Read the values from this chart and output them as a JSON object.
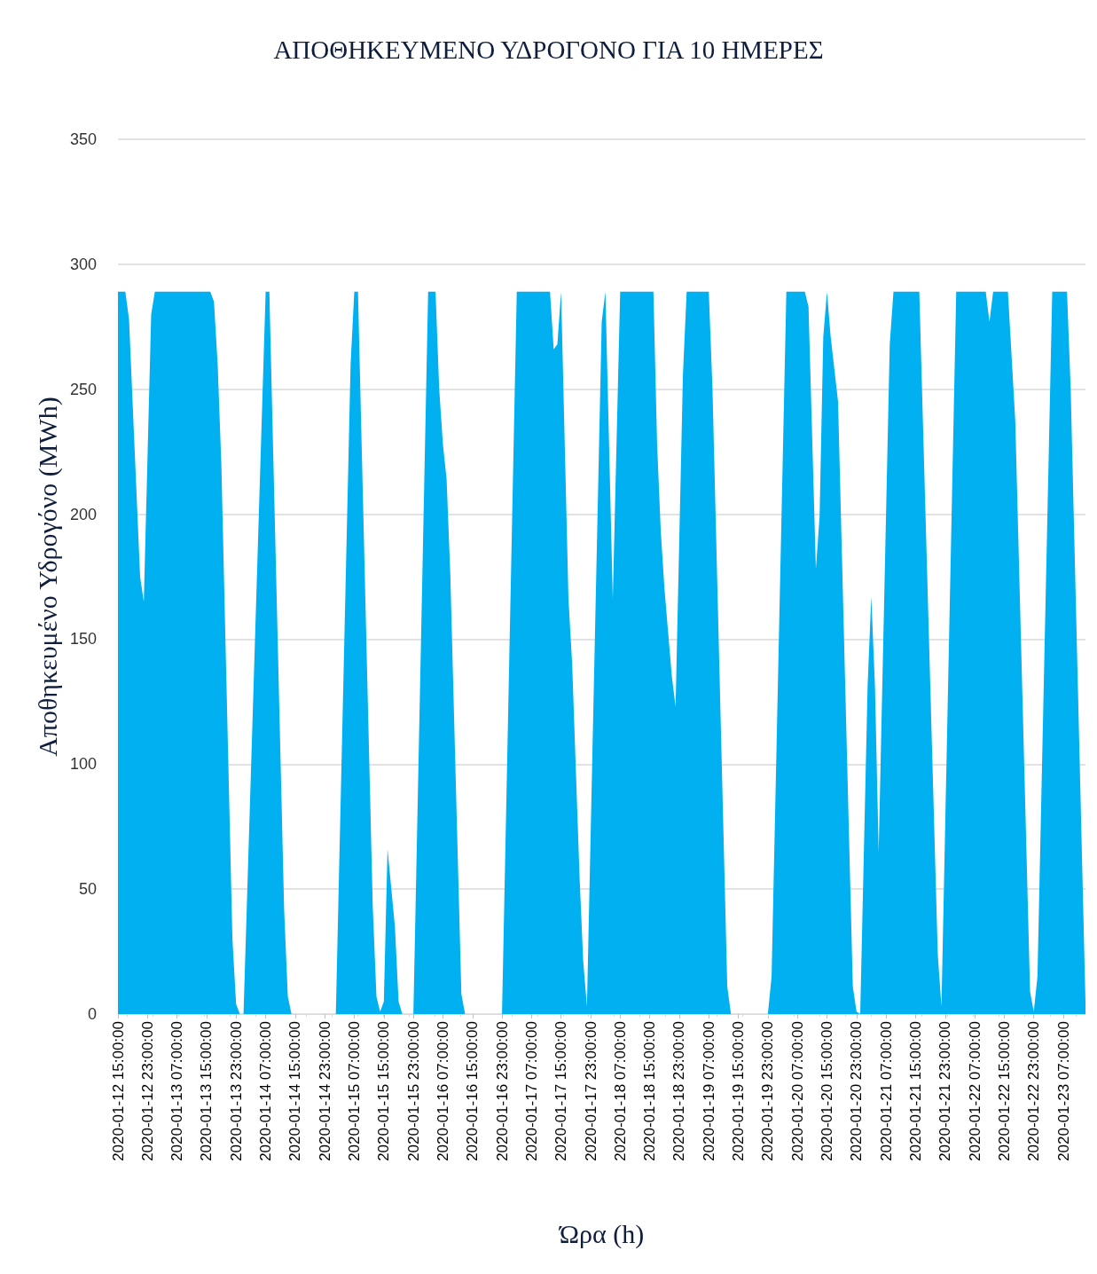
{
  "chart_data": {
    "type": "area",
    "title": "ΑΠΟΘΗΚΕΥΜΕΝΟ ΥΔΡΟΓΟΝΟ ΓΙΑ 10 ΗΜΕΡΕΣ",
    "xlabel": "Ώρα (h)",
    "ylabel": "Αποθηκευμένο Υδρογόνο (MWh)",
    "x": [
      "2020-01-12T15:00",
      "2020-01-12T17:00",
      "2020-01-12T18:00",
      "2020-01-12T21:00",
      "2020-01-12T22:00",
      "2020-01-13T00:00",
      "2020-01-13T01:00",
      "2020-01-13T16:00",
      "2020-01-13T17:00",
      "2020-01-13T18:00",
      "2020-01-13T19:00",
      "2020-01-13T22:00",
      "2020-01-13T23:00",
      "2020-01-14T00:00",
      "2020-01-14T01:00",
      "2020-01-14T07:00",
      "2020-01-14T08:00",
      "2020-01-14T12:00",
      "2020-01-14T13:00",
      "2020-01-14T14:00",
      "2020-01-15T02:00",
      "2020-01-15T06:00",
      "2020-01-15T07:00",
      "2020-01-15T08:00",
      "2020-01-15T12:00",
      "2020-01-15T13:00",
      "2020-01-15T14:00",
      "2020-01-15T15:00",
      "2020-01-15T16:00",
      "2020-01-15T18:00",
      "2020-01-15T19:00",
      "2020-01-15T20:00",
      "2020-01-15T23:00",
      "2020-01-16T03:00",
      "2020-01-16T05:00",
      "2020-01-16T06:00",
      "2020-01-16T07:00",
      "2020-01-16T08:00",
      "2020-01-16T09:00",
      "2020-01-16T12:00",
      "2020-01-16T13:00",
      "2020-01-16T23:00",
      "2020-01-17T03:00",
      "2020-01-17T12:00",
      "2020-01-17T13:00",
      "2020-01-17T14:00",
      "2020-01-17T15:00",
      "2020-01-17T17:00",
      "2020-01-17T18:00",
      "2020-01-17T20:00",
      "2020-01-17T21:00",
      "2020-01-17T22:00",
      "2020-01-18T02:00",
      "2020-01-18T03:00",
      "2020-01-18T05:00",
      "2020-01-18T07:00",
      "2020-01-18T16:00",
      "2020-01-18T17:00",
      "2020-01-18T18:00",
      "2020-01-18T19:00",
      "2020-01-18T21:00",
      "2020-01-18T22:00",
      "2020-01-19T00:00",
      "2020-01-19T01:00",
      "2020-01-19T07:00",
      "2020-01-19T08:00",
      "2020-01-19T12:00",
      "2020-01-19T13:00",
      "2020-01-19T23:00",
      "2020-01-20T00:00",
      "2020-01-20T04:00",
      "2020-01-20T09:00",
      "2020-01-20T10:00",
      "2020-01-20T12:00",
      "2020-01-20T13:00",
      "2020-01-20T14:00",
      "2020-01-20T15:00",
      "2020-01-20T16:00",
      "2020-01-20T18:00",
      "2020-01-20T22:00",
      "2020-01-20T23:00",
      "2020-01-21T00:00",
      "2020-01-21T02:00",
      "2020-01-21T03:00",
      "2020-01-21T04:00",
      "2020-01-21T05:00",
      "2020-01-21T08:00",
      "2020-01-21T09:00",
      "2020-01-21T16:00",
      "2020-01-21T21:00",
      "2020-01-21T22:00",
      "2020-01-22T02:00",
      "2020-01-22T10:00",
      "2020-01-22T11:00",
      "2020-01-22T12:00",
      "2020-01-22T16:00",
      "2020-01-22T18:00",
      "2020-01-22T22:00",
      "2020-01-22T23:00",
      "2020-01-23T00:00",
      "2020-01-23T04:00",
      "2020-01-23T08:00",
      "2020-01-23T09:00",
      "2020-01-23T13:00"
    ],
    "series": [
      {
        "color": "#00b0f0",
        "values": [
          289,
          289,
          278,
          175,
          165,
          280,
          289,
          289,
          285,
          260,
          220,
          30,
          4,
          0,
          0,
          289,
          289,
          42,
          7,
          0,
          0,
          260,
          289,
          289,
          43,
          7,
          1,
          5,
          66,
          35,
          5,
          0,
          0,
          289,
          289,
          250,
          228,
          214,
          176,
          8,
          0,
          0,
          289,
          289,
          266,
          268,
          289,
          166,
          140,
          55,
          21,
          3,
          277,
          289,
          166,
          289,
          289,
          228,
          193,
          170,
          135,
          123,
          256,
          289,
          289,
          250,
          11,
          0,
          0,
          15,
          289,
          289,
          283,
          178,
          199,
          271,
          289,
          271,
          245,
          11,
          1,
          0,
          131,
          167,
          131,
          65,
          268,
          289,
          289,
          24,
          3,
          289,
          289,
          277,
          289,
          289,
          237,
          9,
          1,
          15,
          289,
          289,
          250,
          5
        ]
      }
    ],
    "xlim": [
      "2020-01-12T15:00",
      "2020-01-23T13:00"
    ],
    "xticks": [
      {
        "value": "2020-01-12T15:00",
        "label": "2020-01-12 15:00:00"
      },
      {
        "value": "2020-01-12T23:00",
        "label": "2020-01-12 23:00:00"
      },
      {
        "value": "2020-01-13T07:00",
        "label": "2020-01-13 07:00:00"
      },
      {
        "value": "2020-01-13T15:00",
        "label": "2020-01-13 15:00:00"
      },
      {
        "value": "2020-01-13T23:00",
        "label": "2020-01-13 23:00:00"
      },
      {
        "value": "2020-01-14T07:00",
        "label": "2020-01-14 07:00:00"
      },
      {
        "value": "2020-01-14T15:00",
        "label": "2020-01-14 15:00:00"
      },
      {
        "value": "2020-01-14T23:00",
        "label": "2020-01-14 23:00:00"
      },
      {
        "value": "2020-01-15T07:00",
        "label": "2020-01-15 07:00:00"
      },
      {
        "value": "2020-01-15T15:00",
        "label": "2020-01-15 15:00:00"
      },
      {
        "value": "2020-01-15T23:00",
        "label": "2020-01-15 23:00:00"
      },
      {
        "value": "2020-01-16T07:00",
        "label": "2020-01-16 07:00:00"
      },
      {
        "value": "2020-01-16T15:00",
        "label": "2020-01-16 15:00:00"
      },
      {
        "value": "2020-01-16T23:00",
        "label": "2020-01-16 23:00:00"
      },
      {
        "value": "2020-01-17T07:00",
        "label": "2020-01-17 07:00:00"
      },
      {
        "value": "2020-01-17T15:00",
        "label": "2020-01-17 15:00:00"
      },
      {
        "value": "2020-01-17T23:00",
        "label": "2020-01-17 23:00:00"
      },
      {
        "value": "2020-01-18T07:00",
        "label": "2020-01-18 07:00:00"
      },
      {
        "value": "2020-01-18T15:00",
        "label": "2020-01-18 15:00:00"
      },
      {
        "value": "2020-01-18T23:00",
        "label": "2020-01-18 23:00:00"
      },
      {
        "value": "2020-01-19T07:00",
        "label": "2020-01-19 07:00:00"
      },
      {
        "value": "2020-01-19T15:00",
        "label": "2020-01-19 15:00:00"
      },
      {
        "value": "2020-01-19T23:00",
        "label": "2020-01-19 23:00:00"
      },
      {
        "value": "2020-01-20T07:00",
        "label": "2020-01-20 07:00:00"
      },
      {
        "value": "2020-01-20T15:00",
        "label": "2020-01-20 15:00:00"
      },
      {
        "value": "2020-01-20T23:00",
        "label": "2020-01-20 23:00:00"
      },
      {
        "value": "2020-01-21T07:00",
        "label": "2020-01-21 07:00:00"
      },
      {
        "value": "2020-01-21T15:00",
        "label": "2020-01-21 15:00:00"
      },
      {
        "value": "2020-01-21T23:00",
        "label": "2020-01-21 23:00:00"
      },
      {
        "value": "2020-01-22T07:00",
        "label": "2020-01-22 07:00:00"
      },
      {
        "value": "2020-01-22T15:00",
        "label": "2020-01-22 15:00:00"
      },
      {
        "value": "2020-01-22T23:00",
        "label": "2020-01-22 23:00:00"
      },
      {
        "value": "2020-01-23T07:00",
        "label": "2020-01-23 07:00:00"
      }
    ],
    "ylim": [
      0,
      350
    ],
    "yticks": [
      0,
      50,
      100,
      150,
      200,
      250,
      300,
      350
    ],
    "grid": "y"
  }
}
